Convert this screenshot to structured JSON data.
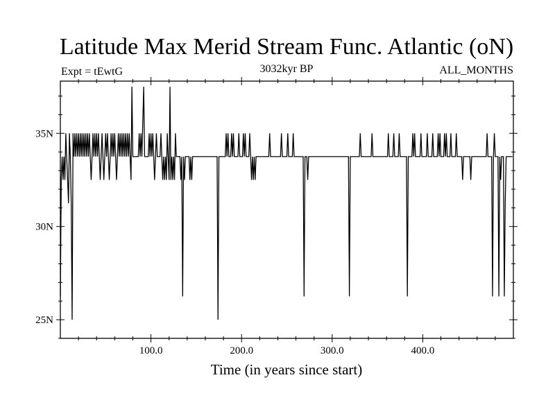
{
  "chart_data": {
    "type": "line",
    "title": "Latitude Max Merid Stream Func. Atlantic (oN)",
    "left_label": "Expt = tEwtG",
    "center_label": "3032kyr BP",
    "right_label": "ALL_MONTHS",
    "xlabel": "Time (in years since start)",
    "ylabel": "",
    "xlim": [
      0,
      500
    ],
    "ylim": [
      24,
      37.8
    ],
    "x_ticks": [
      100,
      200,
      300,
      400
    ],
    "x_tick_labels": [
      "100.0",
      "200.0",
      "300.0",
      "400.0"
    ],
    "x_minor_step": 20,
    "y_ticks": [
      25,
      30,
      35
    ],
    "y_tick_labels": [
      "25N",
      "30N",
      "35N"
    ],
    "y_minor_step": 1,
    "baseline": 33.75,
    "levels": [
      25,
      26.25,
      27.5,
      28.75,
      30,
      31.25,
      32.5,
      33.75,
      35,
      36.25,
      37.5
    ],
    "events": [
      [
        0,
        26.25
      ],
      [
        1,
        32.5
      ],
      [
        2,
        33.75
      ],
      [
        3,
        32.5
      ],
      [
        4,
        33.75
      ],
      [
        5,
        32.5
      ],
      [
        6,
        35
      ],
      [
        7,
        33.75
      ],
      [
        8,
        32.5
      ],
      [
        9,
        31.25
      ],
      [
        10,
        35
      ],
      [
        11,
        33.75
      ],
      [
        12,
        31.25
      ],
      [
        13,
        25
      ],
      [
        14,
        35
      ],
      [
        15,
        33.75
      ],
      [
        16,
        35
      ],
      [
        17,
        33.75
      ],
      [
        18,
        35
      ],
      [
        19,
        33.75
      ],
      [
        20,
        35
      ],
      [
        21,
        33.75
      ],
      [
        22,
        35
      ],
      [
        23,
        33.75
      ],
      [
        24,
        35
      ],
      [
        25,
        33.75
      ],
      [
        26,
        35
      ],
      [
        27,
        33.75
      ],
      [
        28,
        35
      ],
      [
        29,
        33.75
      ],
      [
        30,
        35
      ],
      [
        31,
        33.75
      ],
      [
        32,
        35
      ],
      [
        33,
        33.75
      ],
      [
        34,
        32.5
      ],
      [
        35,
        33.75
      ],
      [
        36,
        35
      ],
      [
        37,
        33.75
      ],
      [
        38,
        35
      ],
      [
        39,
        33.75
      ],
      [
        40,
        35
      ],
      [
        41,
        33.75
      ],
      [
        42,
        35
      ],
      [
        43,
        33.75
      ],
      [
        44,
        32.5
      ],
      [
        45,
        33.75
      ],
      [
        46,
        35
      ],
      [
        47,
        33.75
      ],
      [
        48,
        32.5
      ],
      [
        49,
        33.75
      ],
      [
        50,
        35
      ],
      [
        51,
        33.75
      ],
      [
        52,
        35
      ],
      [
        53,
        33.75
      ],
      [
        54,
        32.5
      ],
      [
        55,
        33.75
      ],
      [
        56,
        35
      ],
      [
        57,
        33.75
      ],
      [
        58,
        35
      ],
      [
        59,
        33.75
      ],
      [
        60,
        35
      ],
      [
        61,
        33.75
      ],
      [
        62,
        32.5
      ],
      [
        63,
        33.75
      ],
      [
        64,
        35
      ],
      [
        65,
        33.75
      ],
      [
        66,
        35
      ],
      [
        67,
        33.75
      ],
      [
        68,
        35
      ],
      [
        69,
        33.75
      ],
      [
        70,
        35
      ],
      [
        71,
        33.75
      ],
      [
        72,
        35
      ],
      [
        73,
        33.75
      ],
      [
        74,
        35
      ],
      [
        75,
        33.75
      ],
      [
        76,
        35
      ],
      [
        77,
        33.75
      ],
      [
        78,
        32.5
      ],
      [
        79,
        37.5
      ],
      [
        80,
        33.75
      ],
      [
        86,
        33.75
      ],
      [
        87,
        35
      ],
      [
        88,
        33.75
      ],
      [
        89,
        35
      ],
      [
        90,
        33.75
      ],
      [
        92,
        37.5
      ],
      [
        93,
        33.75
      ],
      [
        97,
        33.75
      ],
      [
        98,
        35
      ],
      [
        99,
        33.75
      ],
      [
        100,
        35
      ],
      [
        101,
        33.75
      ],
      [
        102,
        35
      ],
      [
        103,
        33.75
      ],
      [
        104,
        32.5
      ],
      [
        105,
        33.75
      ],
      [
        106,
        35
      ],
      [
        107,
        33.75
      ],
      [
        110,
        33.75
      ],
      [
        111,
        35
      ],
      [
        112,
        33.75
      ],
      [
        113,
        32.5
      ],
      [
        114,
        33.75
      ],
      [
        115,
        32.5
      ],
      [
        116,
        33.75
      ],
      [
        117,
        32.5
      ],
      [
        118,
        35
      ],
      [
        119,
        33.75
      ],
      [
        120,
        32.5
      ],
      [
        121,
        37.5
      ],
      [
        122,
        32.5
      ],
      [
        123,
        33.75
      ],
      [
        124,
        32.5
      ],
      [
        125,
        33.75
      ],
      [
        126,
        32.5
      ],
      [
        127,
        35
      ],
      [
        128,
        33.75
      ],
      [
        132,
        33.75
      ],
      [
        133,
        32.5
      ],
      [
        134,
        33.75
      ],
      [
        135,
        26.25
      ],
      [
        136,
        33.75
      ],
      [
        137,
        32.5
      ],
      [
        138,
        33.75
      ],
      [
        142,
        33.75
      ],
      [
        143,
        32.5
      ],
      [
        144,
        33.75
      ],
      [
        145,
        32.5
      ],
      [
        146,
        33.75
      ],
      [
        173,
        33.75
      ],
      [
        174,
        25
      ],
      [
        175,
        33.75
      ],
      [
        182,
        33.75
      ],
      [
        183,
        35
      ],
      [
        184,
        33.75
      ],
      [
        185,
        35
      ],
      [
        186,
        33.75
      ],
      [
        188,
        33.75
      ],
      [
        189,
        35
      ],
      [
        190,
        33.75
      ],
      [
        191,
        35
      ],
      [
        192,
        33.75
      ],
      [
        196,
        33.75
      ],
      [
        197,
        35
      ],
      [
        198,
        33.75
      ],
      [
        201,
        33.75
      ],
      [
        202,
        35
      ],
      [
        203,
        33.75
      ],
      [
        204,
        35
      ],
      [
        205,
        33.75
      ],
      [
        208,
        33.75
      ],
      [
        209,
        35
      ],
      [
        210,
        33.75
      ],
      [
        211,
        32.5
      ],
      [
        212,
        33.75
      ],
      [
        213,
        32.5
      ],
      [
        214,
        33.75
      ],
      [
        215,
        32.5
      ],
      [
        216,
        33.75
      ],
      [
        230,
        33.75
      ],
      [
        231,
        35
      ],
      [
        232,
        33.75
      ],
      [
        243,
        33.75
      ],
      [
        244,
        35
      ],
      [
        245,
        33.75
      ],
      [
        250,
        33.75
      ],
      [
        251,
        35
      ],
      [
        252,
        33.75
      ],
      [
        256,
        33.75
      ],
      [
        257,
        35
      ],
      [
        258,
        33.75
      ],
      [
        268,
        33.75
      ],
      [
        269,
        26.25
      ],
      [
        270,
        33.75
      ],
      [
        272,
        33.75
      ],
      [
        273,
        32.5
      ],
      [
        274,
        33.75
      ],
      [
        318,
        33.75
      ],
      [
        319,
        26.25
      ],
      [
        320,
        33.75
      ],
      [
        330,
        33.75
      ],
      [
        331,
        35
      ],
      [
        332,
        33.75
      ],
      [
        343,
        33.75
      ],
      [
        344,
        35
      ],
      [
        345,
        33.75
      ],
      [
        361,
        33.75
      ],
      [
        362,
        35
      ],
      [
        363,
        33.75
      ],
      [
        367,
        33.75
      ],
      [
        368,
        35
      ],
      [
        369,
        33.75
      ],
      [
        373,
        33.75
      ],
      [
        374,
        35
      ],
      [
        375,
        33.75
      ],
      [
        382,
        33.75
      ],
      [
        383,
        26.25
      ],
      [
        384,
        33.75
      ],
      [
        388,
        33.75
      ],
      [
        389,
        35
      ],
      [
        390,
        33.75
      ],
      [
        391,
        35
      ],
      [
        392,
        33.75
      ],
      [
        397,
        33.75
      ],
      [
        398,
        35
      ],
      [
        399,
        33.75
      ],
      [
        404,
        33.75
      ],
      [
        405,
        35
      ],
      [
        406,
        33.75
      ],
      [
        410,
        33.75
      ],
      [
        411,
        35
      ],
      [
        412,
        33.75
      ],
      [
        416,
        33.75
      ],
      [
        417,
        35
      ],
      [
        418,
        33.75
      ],
      [
        419,
        35
      ],
      [
        420,
        33.75
      ],
      [
        423,
        33.75
      ],
      [
        424,
        35
      ],
      [
        425,
        33.75
      ],
      [
        426,
        35
      ],
      [
        427,
        33.75
      ],
      [
        430,
        33.75
      ],
      [
        431,
        35
      ],
      [
        432,
        33.75
      ],
      [
        436,
        33.75
      ],
      [
        437,
        35
      ],
      [
        438,
        33.75
      ],
      [
        443,
        33.75
      ],
      [
        444,
        32.5
      ],
      [
        445,
        33.75
      ],
      [
        452,
        33.75
      ],
      [
        453,
        32.5
      ],
      [
        454,
        33.75
      ],
      [
        470,
        33.75
      ],
      [
        471,
        35
      ],
      [
        472,
        33.75
      ],
      [
        476,
        33.75
      ],
      [
        477,
        26.25
      ],
      [
        478,
        33.75
      ],
      [
        479,
        35
      ],
      [
        480,
        33.75
      ],
      [
        483,
        33.75
      ],
      [
        484,
        26.25
      ],
      [
        485,
        33.75
      ],
      [
        486,
        32.5
      ],
      [
        487,
        33.75
      ],
      [
        489,
        33.75
      ],
      [
        490,
        26.25
      ],
      [
        491,
        31.25
      ],
      [
        492,
        33.75
      ],
      [
        499,
        33.75
      ]
    ]
  }
}
